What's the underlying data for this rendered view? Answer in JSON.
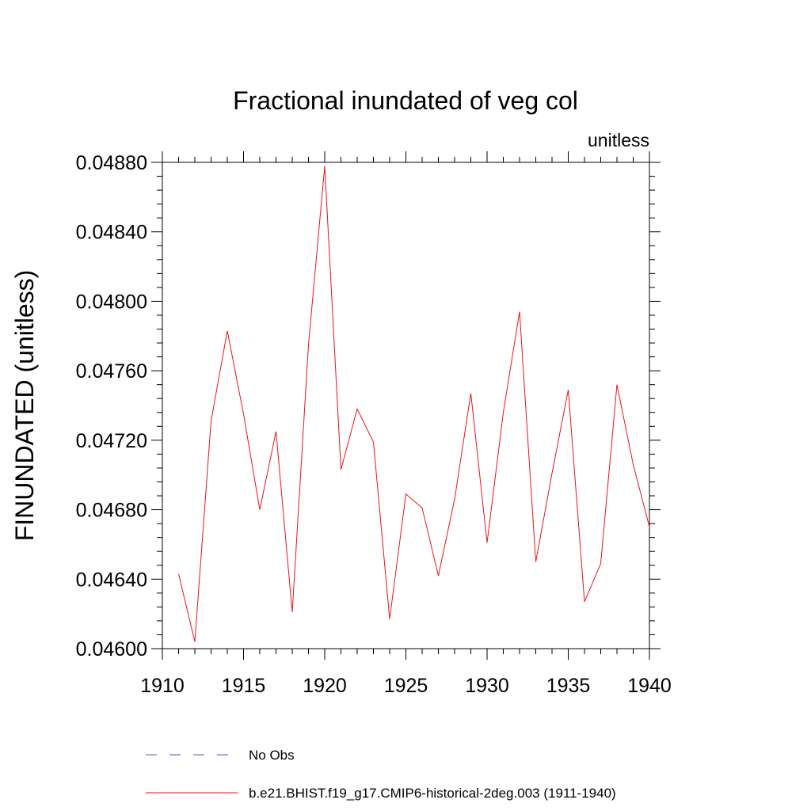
{
  "chart_data": {
    "type": "line",
    "title": "Fractional inundated of veg col",
    "units_label": "unitless",
    "xlabel": "",
    "ylabel": "FINUNDATED  (unitless)",
    "xlim": [
      1910,
      1940
    ],
    "ylim": [
      0.046,
      0.0488
    ],
    "xticks": [
      1910,
      1915,
      1920,
      1925,
      1930,
      1935,
      1940
    ],
    "xtick_labels": [
      "1910",
      "1915",
      "1920",
      "1925",
      "1930",
      "1935",
      "1940"
    ],
    "yticks": [
      0.046,
      0.0464,
      0.0468,
      0.0472,
      0.0476,
      0.048,
      0.0484,
      0.0488
    ],
    "ytick_labels": [
      "0.04600",
      "0.04640",
      "0.04680",
      "0.04720",
      "0.04760",
      "0.04800",
      "0.04840",
      "0.04880"
    ],
    "grid": false,
    "legend_position": "bottom",
    "series": [
      {
        "name": "b.e21.BHIST.f19_g17.CMIP6-historical-2deg.003 (1911-1940)",
        "color": "#e8141b",
        "style": "solid",
        "x": [
          1911,
          1912,
          1913,
          1914,
          1915,
          1916,
          1917,
          1918,
          1919,
          1920,
          1921,
          1922,
          1923,
          1924,
          1925,
          1926,
          1927,
          1928,
          1929,
          1930,
          1931,
          1932,
          1933,
          1934,
          1935,
          1936,
          1937,
          1938,
          1939,
          1940
        ],
        "y": [
          0.04643,
          0.04604,
          0.04731,
          0.04783,
          0.04735,
          0.0468,
          0.04725,
          0.04621,
          0.04775,
          0.04878,
          0.04703,
          0.04738,
          0.04719,
          0.04617,
          0.04689,
          0.04681,
          0.04642,
          0.04686,
          0.04747,
          0.04661,
          0.04736,
          0.04794,
          0.0465,
          0.04701,
          0.04749,
          0.04627,
          0.04649,
          0.04752,
          0.04706,
          0.0467
        ]
      }
    ],
    "legend": [
      {
        "label": "No Obs",
        "color": "#5a50c8",
        "style": "dashed"
      },
      {
        "label": "b.e21.BHIST.f19_g17.CMIP6-historical-2deg.003 (1911-1940)",
        "color": "#e8141b",
        "style": "solid"
      }
    ]
  }
}
